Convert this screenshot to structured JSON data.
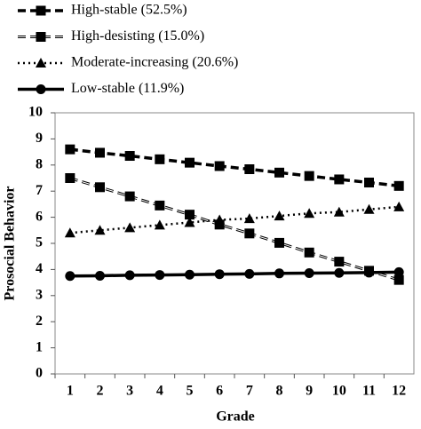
{
  "chart_data": {
    "type": "line",
    "x_label": "Grade",
    "y_label": "Prosocial Behavior",
    "categories": [
      "1",
      "2",
      "3",
      "4",
      "5",
      "6",
      "7",
      "8",
      "9",
      "10",
      "11",
      "12"
    ],
    "series": [
      {
        "name": "High-stable (52.5%)",
        "color": "#000000",
        "dash": "dashed",
        "marker": "square",
        "values": [
          8.6,
          8.47,
          8.35,
          8.22,
          8.09,
          7.96,
          7.84,
          7.71,
          7.58,
          7.45,
          7.33,
          7.2
        ]
      },
      {
        "name": "High-desisting (15.0%)",
        "color": "#000000",
        "dash": "double-dashed",
        "marker": "square",
        "values": [
          7.5,
          7.15,
          6.8,
          6.45,
          6.1,
          5.72,
          5.38,
          5.02,
          4.65,
          4.3,
          3.95,
          3.6
        ]
      },
      {
        "name": "Moderate-increasing (20.6%)",
        "color": "#000000",
        "dash": "dotted",
        "marker": "triangle",
        "values": [
          5.4,
          5.5,
          5.6,
          5.7,
          5.8,
          5.9,
          5.95,
          6.05,
          6.15,
          6.2,
          6.3,
          6.4
        ]
      },
      {
        "name": "Low-stable (11.9%)",
        "color": "#000000",
        "dash": "solid",
        "marker": "circle",
        "values": [
          3.75,
          3.76,
          3.78,
          3.79,
          3.8,
          3.82,
          3.83,
          3.85,
          3.86,
          3.87,
          3.88,
          3.9
        ]
      }
    ],
    "ylim": [
      0,
      10
    ],
    "yticks": [
      0,
      1,
      2,
      3,
      4,
      5,
      6,
      7,
      8,
      9,
      10
    ],
    "grid": false,
    "legend": "top"
  }
}
